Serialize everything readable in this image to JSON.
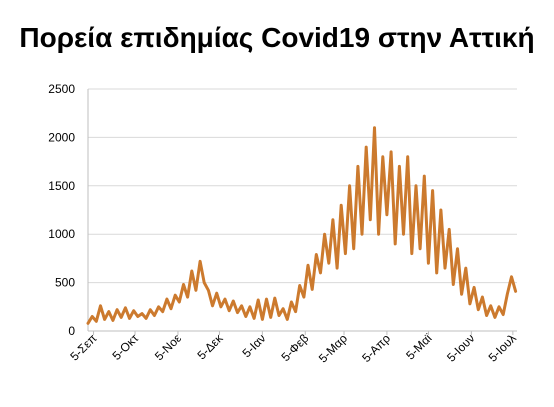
{
  "chart_data": {
    "type": "line",
    "title": "Πορεία επιδημίας Covid19 στην Αττική",
    "xlabel": "",
    "ylabel": "",
    "ylim": [
      0,
      2500
    ],
    "yticks": [
      0,
      500,
      1000,
      1500,
      2000,
      2500
    ],
    "x_tick_labels": [
      "5-Σεπ",
      "5-Οκτ",
      "5-Νοε",
      "5-Δεκ",
      "5-Ιαν",
      "5-Φεβ",
      "5-Μαρ",
      "5-Απρ",
      "5-Μαϊ",
      "5-Ιουν",
      "5-Ιουλ"
    ],
    "x_start": "2021-09-01",
    "x_end": "2022-07-08",
    "grid": "horizontal",
    "legend": "none",
    "series": [
      {
        "color": "#cc7a2e",
        "x": [
          "2021-09-01",
          "2021-09-04",
          "2021-09-07",
          "2021-09-10",
          "2021-09-13",
          "2021-09-16",
          "2021-09-19",
          "2021-09-22",
          "2021-09-25",
          "2021-09-28",
          "2021-10-01",
          "2021-10-04",
          "2021-10-07",
          "2021-10-10",
          "2021-10-13",
          "2021-10-16",
          "2021-10-19",
          "2021-10-22",
          "2021-10-25",
          "2021-10-28",
          "2021-10-31",
          "2021-11-03",
          "2021-11-06",
          "2021-11-09",
          "2021-11-12",
          "2021-11-15",
          "2021-11-18",
          "2021-11-21",
          "2021-11-24",
          "2021-11-27",
          "2021-11-30",
          "2021-12-03",
          "2021-12-06",
          "2021-12-09",
          "2021-12-12",
          "2021-12-15",
          "2021-12-18",
          "2021-12-21",
          "2021-12-24",
          "2021-12-27",
          "2021-12-30",
          "2022-01-02",
          "2022-01-05",
          "2022-01-08",
          "2022-01-11",
          "2022-01-14",
          "2022-01-17",
          "2022-01-20",
          "2022-01-23",
          "2022-01-26",
          "2022-01-29",
          "2022-02-01",
          "2022-02-04",
          "2022-02-07",
          "2022-02-10",
          "2022-02-13",
          "2022-02-16",
          "2022-02-19",
          "2022-02-22",
          "2022-02-25",
          "2022-02-28",
          "2022-03-03",
          "2022-03-06",
          "2022-03-09",
          "2022-03-12",
          "2022-03-15",
          "2022-03-18",
          "2022-03-21",
          "2022-03-24",
          "2022-03-27",
          "2022-03-30",
          "2022-04-02",
          "2022-04-05",
          "2022-04-08",
          "2022-04-11",
          "2022-04-14",
          "2022-04-17",
          "2022-04-20",
          "2022-04-23",
          "2022-04-26",
          "2022-04-29",
          "2022-05-02",
          "2022-05-05",
          "2022-05-08",
          "2022-05-11",
          "2022-05-14",
          "2022-05-17",
          "2022-05-20",
          "2022-05-23",
          "2022-05-26",
          "2022-05-29",
          "2022-06-01",
          "2022-06-04",
          "2022-06-07",
          "2022-06-10",
          "2022-06-13",
          "2022-06-16",
          "2022-06-19",
          "2022-06-22",
          "2022-06-25",
          "2022-06-28",
          "2022-07-01",
          "2022-07-04",
          "2022-07-07"
        ],
        "values": [
          80,
          150,
          100,
          260,
          120,
          200,
          110,
          220,
          140,
          240,
          130,
          210,
          150,
          180,
          130,
          220,
          160,
          250,
          200,
          330,
          230,
          370,
          300,
          480,
          350,
          620,
          420,
          720,
          500,
          420,
          260,
          390,
          250,
          330,
          210,
          310,
          190,
          260,
          150,
          250,
          130,
          320,
          120,
          330,
          140,
          340,
          160,
          230,
          120,
          300,
          200,
          470,
          350,
          680,
          430,
          790,
          600,
          1000,
          700,
          1150,
          650,
          1300,
          800,
          1500,
          850,
          1700,
          1000,
          1900,
          1150,
          2100,
          1000,
          1800,
          1200,
          1850,
          900,
          1700,
          1000,
          1800,
          800,
          1500,
          850,
          1600,
          700,
          1450,
          600,
          1250,
          650,
          1050,
          480,
          850,
          380,
          650,
          280,
          450,
          220,
          350,
          160,
          260,
          140,
          250,
          170,
          380,
          560,
          410
        ]
      }
    ]
  }
}
